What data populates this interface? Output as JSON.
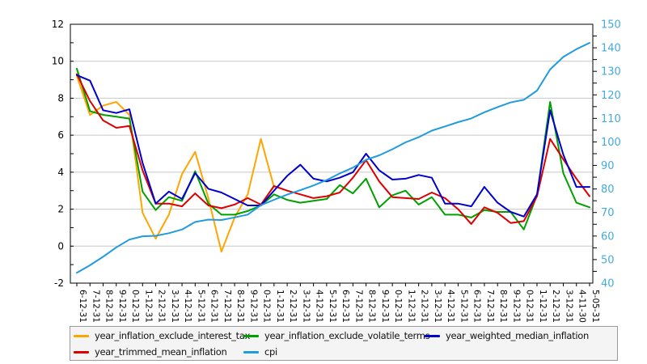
{
  "chart_data": {
    "type": "line",
    "title": "",
    "xlabel": "",
    "ylabel_left": "",
    "ylabel_right": "",
    "grid": "horizontal",
    "legend_position": "bottom",
    "ylim_left": [
      -2,
      12
    ],
    "ylim_right": [
      40,
      150
    ],
    "left_axis": {
      "label_step": 2,
      "minor_step": 1,
      "tick_labels": [
        "-2",
        "0",
        "2",
        "4",
        "6",
        "8",
        "10",
        "12"
      ],
      "label_color": "#000000"
    },
    "right_axis": {
      "label_step": 10,
      "minor_step": 5,
      "tick_labels": [
        "40",
        "50",
        "60",
        "70",
        "80",
        "90",
        "100",
        "110",
        "120",
        "130",
        "140",
        "150"
      ],
      "label_color": "#45aadf"
    },
    "x_tick_labels": [
      "6-12-31",
      "7-12-31",
      "8-12-31",
      "9-12-31",
      "0-12-31",
      "1-12-31",
      "2-12-31",
      "3-12-31",
      "4-12-31",
      "5-12-31",
      "6-12-31",
      "7-12-31",
      "8-12-31",
      "9-12-31",
      "0-12-31",
      "1-12-31",
      "2-12-31",
      "3-12-31",
      "4-12-31",
      "5-12-31",
      "6-12-31",
      "7-12-31",
      "8-12-31",
      "9-12-31",
      "0-12-31",
      "1-12-31",
      "2-12-31",
      "3-12-31",
      "4-12-31",
      "5-12-31",
      "6-12-31",
      "7-12-31",
      "8-12-31",
      "9-12-31",
      "0-12-31",
      "1-12-31",
      "2-12-31",
      "3-12-31",
      "4-11-30",
      "5-05-31"
    ],
    "series": [
      {
        "name": "year_inflation_exclude_interest_tax",
        "color": "#ffa500",
        "axis": "left",
        "values": [
          9.2,
          7.1,
          7.6,
          7.8,
          7.1,
          1.8,
          0.4,
          1.7,
          3.9,
          5.1,
          2.6,
          -0.3,
          1.55,
          2.8,
          5.8,
          3.2,
          null,
          null,
          null,
          null,
          null,
          null,
          null,
          null,
          null,
          null,
          null,
          null,
          null,
          null,
          null,
          null,
          null,
          null,
          null,
          null,
          null,
          null,
          null,
          null
        ]
      },
      {
        "name": "year_inflation_exclude_volatile_terms",
        "color": "#00a000",
        "axis": "left",
        "values": [
          9.6,
          7.3,
          7.1,
          7.0,
          6.9,
          2.95,
          1.95,
          2.65,
          2.45,
          4.05,
          2.3,
          1.7,
          1.7,
          1.9,
          2.2,
          2.8,
          2.5,
          2.35,
          2.45,
          2.55,
          3.3,
          2.85,
          3.65,
          2.1,
          2.75,
          3.0,
          2.25,
          2.65,
          1.7,
          1.7,
          1.55,
          1.95,
          1.85,
          1.85,
          0.9,
          2.75,
          7.8,
          3.95,
          2.35,
          2.1
        ]
      },
      {
        "name": "year_weighted_median_inflation",
        "color": "#0000cd",
        "axis": "left",
        "values": [
          9.25,
          8.95,
          7.35,
          7.2,
          7.4,
          4.5,
          2.3,
          2.95,
          2.55,
          3.95,
          3.1,
          2.9,
          2.55,
          2.2,
          2.2,
          3.0,
          3.8,
          4.4,
          3.65,
          3.5,
          3.7,
          4.0,
          5.0,
          4.1,
          3.6,
          3.65,
          3.85,
          3.7,
          2.3,
          2.3,
          2.15,
          3.2,
          2.35,
          1.85,
          1.6,
          2.8,
          7.35,
          4.95,
          3.2,
          3.2
        ]
      },
      {
        "name": "year_trimmed_mean_inflation",
        "color": "#dd0000",
        "axis": "left",
        "values": [
          9.3,
          7.85,
          6.8,
          6.4,
          6.5,
          4.1,
          2.3,
          2.3,
          2.15,
          2.85,
          2.2,
          2.05,
          2.25,
          2.6,
          2.25,
          3.25,
          3.0,
          2.8,
          2.6,
          2.7,
          2.9,
          3.7,
          4.65,
          3.5,
          2.65,
          2.6,
          2.55,
          2.9,
          2.6,
          2.0,
          1.2,
          2.1,
          1.8,
          1.25,
          1.35,
          2.7,
          5.8,
          4.7,
          3.65,
          2.7
        ]
      },
      {
        "name": "cpi",
        "color": "#1f9bde",
        "axis": "right",
        "values": [
          44.4,
          47.6,
          51.2,
          55.2,
          58.5,
          59.9,
          60.1,
          61.2,
          62.8,
          66.0,
          67.0,
          66.8,
          67.9,
          69.1,
          73.1,
          75.4,
          77.6,
          79.5,
          81.5,
          83.8,
          86.6,
          89.1,
          92.4,
          94.3,
          96.9,
          99.8,
          102.0,
          104.8,
          106.6,
          108.4,
          110.0,
          112.6,
          114.8,
          116.8,
          117.9,
          121.8,
          130.8,
          136.1,
          139.4,
          142.1
        ]
      }
    ],
    "style": {
      "grid_color": "#c8c8c8",
      "frame_color": "#000000",
      "line_width": 2,
      "legend_bg": "#f4f4f4",
      "legend_border": "#9a9a9a"
    }
  }
}
